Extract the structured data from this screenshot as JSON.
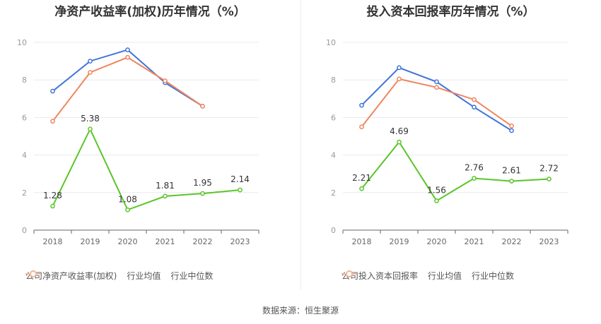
{
  "colors": {
    "company": "#5ac528",
    "avg": "#3f74d8",
    "median": "#f0855d",
    "grid": "#e8eaf0",
    "axis": "#999999"
  },
  "source": "数据来源：恒生聚源",
  "chart_data": [
    {
      "type": "line",
      "title": "净资产收益率(加权)历年情况（%）",
      "x": [
        "2018",
        "2019",
        "2020",
        "2021",
        "2022",
        "2023"
      ],
      "ylim": [
        0,
        10
      ],
      "yticks": [
        "0",
        "2",
        "4",
        "6",
        "8",
        "10"
      ],
      "grid": true,
      "legend_position": "bottom",
      "series": [
        {
          "name": "公司净资产收益率(加权)",
          "color": "#5ac528",
          "values": [
            1.28,
            5.38,
            1.08,
            1.81,
            1.95,
            2.14
          ],
          "labels": [
            "1.28",
            "5.38",
            "1.08",
            "1.81",
            "1.95",
            "2.14"
          ]
        },
        {
          "name": "行业均值",
          "color": "#3f74d8",
          "values": [
            7.4,
            9.0,
            9.6,
            7.85,
            6.6,
            null
          ]
        },
        {
          "name": "行业中位数",
          "color": "#f0855d",
          "values": [
            5.8,
            8.4,
            9.2,
            7.95,
            6.6,
            null
          ]
        }
      ]
    },
    {
      "type": "line",
      "title": "投入资本回报率历年情况（%）",
      "x": [
        "2018",
        "2019",
        "2020",
        "2021",
        "2022",
        "2023"
      ],
      "ylim": [
        0,
        10
      ],
      "yticks": [
        "0",
        "2",
        "4",
        "6",
        "8",
        "10"
      ],
      "grid": true,
      "legend_position": "bottom",
      "series": [
        {
          "name": "公司投入资本回报率",
          "color": "#5ac528",
          "values": [
            2.21,
            4.69,
            1.56,
            2.76,
            2.61,
            2.72
          ],
          "labels": [
            "2.21",
            "4.69",
            "1.56",
            "2.76",
            "2.61",
            "2.72"
          ]
        },
        {
          "name": "行业均值",
          "color": "#3f74d8",
          "values": [
            6.65,
            8.65,
            7.9,
            6.55,
            5.3,
            null
          ]
        },
        {
          "name": "行业中位数",
          "color": "#f0855d",
          "values": [
            5.5,
            8.05,
            7.6,
            6.95,
            5.55,
            null
          ]
        }
      ]
    }
  ]
}
